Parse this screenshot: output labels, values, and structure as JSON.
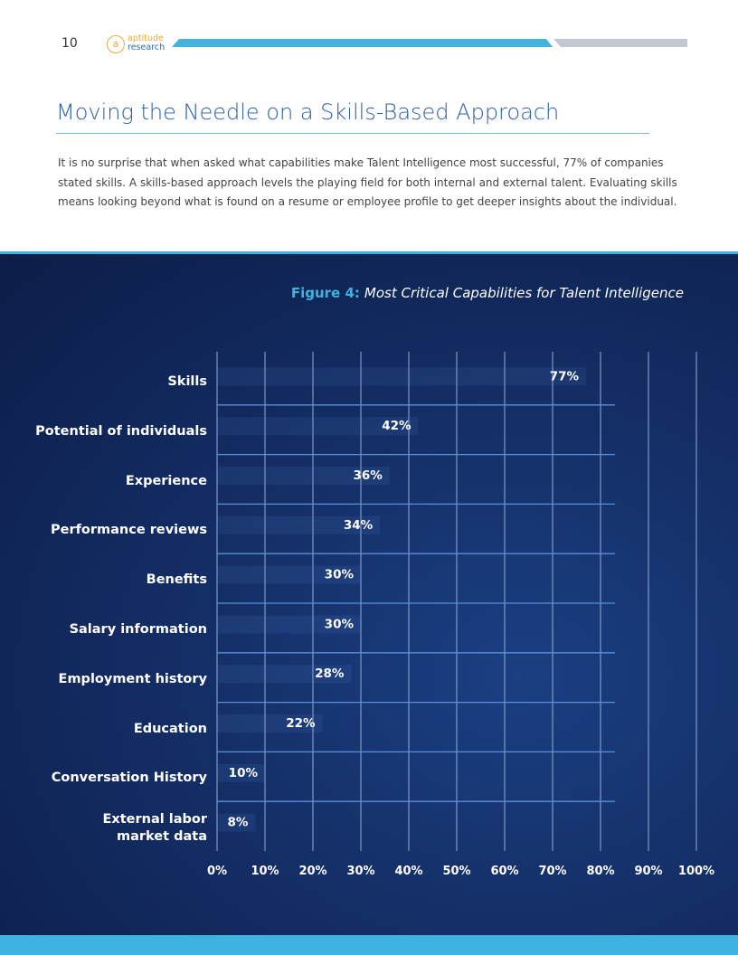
{
  "header": {
    "page_number": "10",
    "logo_top": "aptitude",
    "logo_bottom": "research"
  },
  "title": "Moving the Needle on a Skills-Based Approach",
  "body": "It is no surprise that when asked what capabilities make Talent Intelligence most successful, 77% of companies stated skills. A skills-based approach levels the playing field for both internal and external talent. Evaluating skills means looking beyond what is found on a resume or employee profile to get deeper insights about the individual.",
  "chart_data": {
    "type": "bar",
    "orientation": "horizontal",
    "title_prefix": "Figure 4:",
    "title": "Most Critical Capabilities for Talent Intelligence",
    "categories": [
      "Skills",
      "Potential of individuals",
      "Experience",
      "Performance reviews",
      "Benefits",
      "Salary information",
      "Employment history",
      "Education",
      "Conversation History",
      "External labor\nmarket data"
    ],
    "values": [
      77,
      42,
      36,
      34,
      30,
      30,
      28,
      22,
      10,
      8
    ],
    "value_labels": [
      "77%",
      "42%",
      "36%",
      "34%",
      "30%",
      "30%",
      "28%",
      "22%",
      "10%",
      "8%"
    ],
    "xlim": [
      0,
      100
    ],
    "xticks": [
      {
        "value": 0,
        "label": "0%"
      },
      {
        "value": 10,
        "label": "10%"
      },
      {
        "value": 20,
        "label": "20%"
      },
      {
        "value": 30,
        "label": "30%"
      },
      {
        "value": 40,
        "label": "40%"
      },
      {
        "value": 50,
        "label": "50%"
      },
      {
        "value": 60,
        "label": "60%"
      },
      {
        "value": 70,
        "label": "70%"
      },
      {
        "value": 80,
        "label": "80%"
      },
      {
        "value": 90,
        "label": "90%"
      },
      {
        "value": 100,
        "label": "100%"
      }
    ],
    "grid": true,
    "color": "#5b8fd6"
  }
}
